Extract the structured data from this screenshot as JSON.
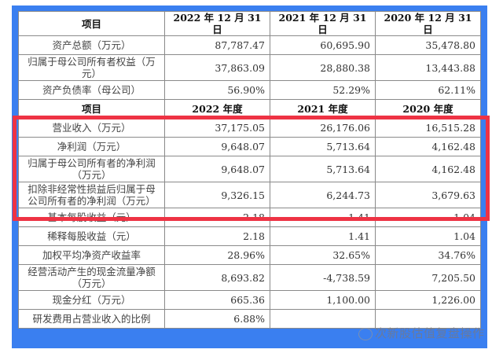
{
  "table": {
    "header1": [
      "项目",
      "2022 年 12 月 31 日",
      "2021 年 12 月 31 日",
      "2020 年 12 月 31 日"
    ],
    "rows1": [
      {
        "label": "资产总额（万元）",
        "values": [
          "87,787.47",
          "60,695.90",
          "35,478.80"
        ]
      },
      {
        "label": "归属于母公司所有者权益（万元）",
        "values": [
          "37,863.09",
          "28,880.38",
          "13,443.88"
        ]
      },
      {
        "label": "资产负债率（母公司）",
        "values": [
          "56.90%",
          "52.29%",
          "62.11%"
        ]
      }
    ],
    "header2": [
      "项目",
      "2022 年度",
      "2021 年度",
      "2020 年度"
    ],
    "rows2": [
      {
        "label": "营业收入（万元）",
        "values": [
          "37,175.05",
          "26,176.06",
          "16,515.28"
        ]
      },
      {
        "label": "净利润（万元）",
        "values": [
          "9,648.07",
          "5,713.64",
          "4,162.48"
        ]
      },
      {
        "label": "归属于母公司所有者的净利润（万元）",
        "values": [
          "9,648.07",
          "5,713.64",
          "4,162.48"
        ]
      },
      {
        "label": "扣除非经常性损益后归属于母公司所有者的净利润（万元）",
        "values": [
          "9,326.15",
          "6,244.73",
          "3,679.63"
        ]
      },
      {
        "label": "基本每股收益（元）",
        "values": [
          "2.18",
          "1.41",
          "1.04"
        ]
      },
      {
        "label": "稀释每股收益（元）",
        "values": [
          "2.18",
          "1.41",
          "1.04"
        ]
      },
      {
        "label": "加权平均净资产收益率",
        "values": [
          "28.96%",
          "32.65%",
          "34.76%"
        ]
      },
      {
        "label": "经营活动产生的现金流量净额（万元）",
        "values": [
          "8,693.82",
          "-4,738.59",
          "7,205.50"
        ]
      },
      {
        "label": "现金分红（万元）",
        "values": [
          "665.36",
          "1,100.00",
          "1,226.00"
        ]
      },
      {
        "label": "研发费用占营业收入的比例",
        "values": [
          "6.88%",
          "",
          ""
        ]
      }
    ]
  },
  "highlight": {
    "color": "#ee3344",
    "note": "营业收入 to 扣非净利润 rows boxed"
  },
  "frame_color": "#3a7ff0",
  "watermark": "次新股估值复盘操作"
}
